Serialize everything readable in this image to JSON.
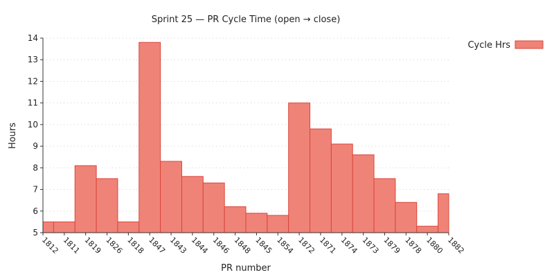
{
  "chart_data": {
    "type": "bar",
    "title": "Sprint 25 — PR Cycle Time (open → close)",
    "xlabel": "PR number",
    "ylabel": "Hours",
    "ylim": [
      5,
      14
    ],
    "yticks": [
      5,
      6,
      7,
      8,
      9,
      10,
      11,
      12,
      13,
      14
    ],
    "grid": true,
    "legend_position": "top-right",
    "series": [
      {
        "name": "Cycle Hrs",
        "color": "#f08378",
        "edge_color": "#d9453a",
        "values": [
          5.5,
          5.5,
          8.1,
          7.5,
          5.5,
          13.8,
          8.3,
          7.6,
          7.3,
          6.2,
          5.9,
          5.8,
          11.0,
          9.8,
          9.1,
          8.6,
          7.5,
          6.4,
          5.3,
          6.8
        ]
      }
    ],
    "categories": [
      "1812",
      "1811",
      "1819",
      "1826",
      "1818",
      "1847",
      "1843",
      "1844",
      "1846",
      "1848",
      "1845",
      "1854",
      "1872",
      "1871",
      "1874",
      "1873",
      "1879",
      "1878",
      "1880",
      "1882"
    ]
  }
}
